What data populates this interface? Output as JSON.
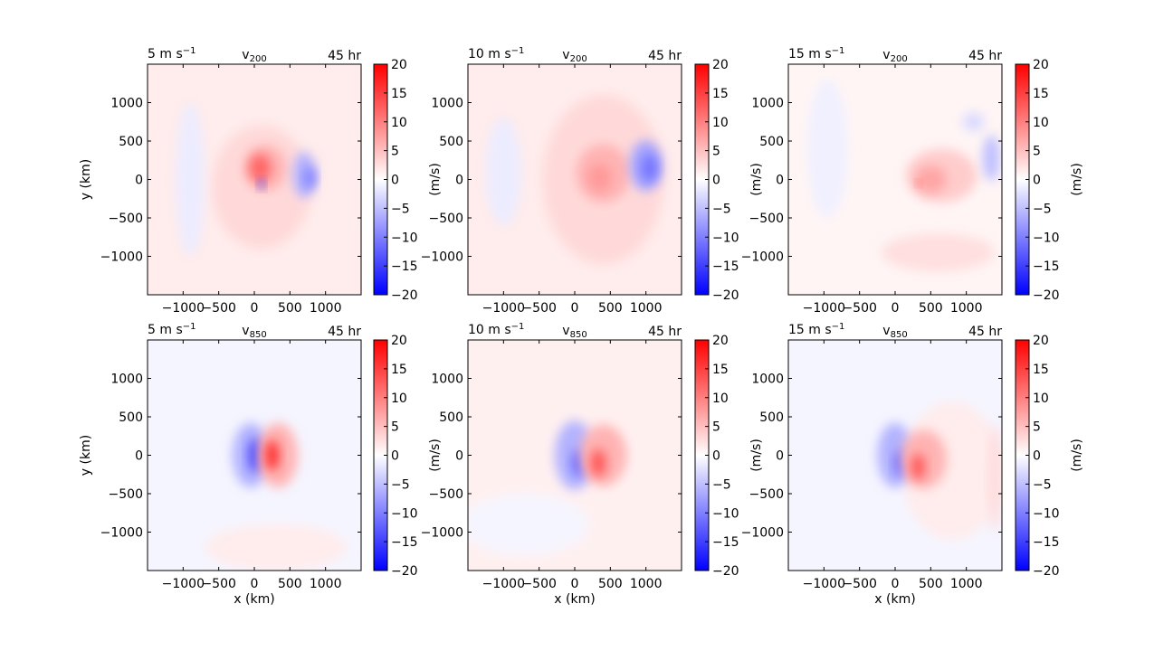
{
  "figure": {
    "colorbar_label": "(m/s)",
    "colorbar": {
      "vmin": -20,
      "vmax": 20,
      "ticks": [
        -20,
        -15,
        -10,
        -5,
        0,
        5,
        10,
        15,
        20
      ],
      "tick_labels": [
        "−20",
        "−15",
        "−10",
        "−5",
        "0",
        "5",
        "10",
        "15",
        "20"
      ],
      "colors": {
        "low": "#0000ff",
        "mid": "#ffffff",
        "high": "#ff0000"
      }
    }
  },
  "chart_data": [
    {
      "type": "heatmap",
      "shear_label": "5 m s",
      "shear_sup": "−1",
      "var_base": "v",
      "var_sub": "200",
      "time_label": "45 hr",
      "xlabel": "",
      "ylabel": "y (km)",
      "xlim": [
        -1500,
        1500
      ],
      "ylim": [
        -1500,
        1500
      ],
      "xticks": [
        -1000,
        -500,
        0,
        500,
        1000
      ],
      "xtick_labels": [
        "−1000",
        "−500",
        "0",
        "500",
        "1000"
      ],
      "yticks": [
        -1000,
        -500,
        0,
        500,
        1000
      ],
      "ytick_labels": [
        "−1000",
        "−500",
        "0",
        "500",
        "1000"
      ],
      "background_value": 1.5,
      "features": [
        {
          "x": 100,
          "y": -100,
          "rx": 700,
          "ry": 800,
          "value": 3
        },
        {
          "x": 150,
          "y": 150,
          "rx": 300,
          "ry": 300,
          "value": 6
        },
        {
          "x": 80,
          "y": 150,
          "rx": 150,
          "ry": 180,
          "value": 12
        },
        {
          "x": 700,
          "y": 60,
          "rx": 160,
          "ry": 300,
          "value": -6
        },
        {
          "x": 780,
          "y": 20,
          "rx": 80,
          "ry": 150,
          "value": -10
        },
        {
          "x": 100,
          "y": -60,
          "rx": 45,
          "ry": 60,
          "value": -16
        },
        {
          "x": -900,
          "y": 0,
          "rx": 200,
          "ry": 1000,
          "value": -1.5
        }
      ]
    },
    {
      "type": "heatmap",
      "shear_label": "10 m s",
      "shear_sup": "−1",
      "var_base": "v",
      "var_sub": "200",
      "time_label": "45 hr",
      "xlabel": "",
      "ylabel": "",
      "xlim": [
        -1500,
        1500
      ],
      "ylim": [
        -1500,
        1500
      ],
      "xticks": [
        -1000,
        -500,
        0,
        500,
        1000
      ],
      "xtick_labels": [
        "−1000",
        "−500",
        "0",
        "500",
        "1000"
      ],
      "yticks": [
        -1000,
        -500,
        0,
        500,
        1000
      ],
      "ytick_labels": [
        "−1000",
        "−500",
        "0",
        "500",
        "1000"
      ],
      "background_value": 1.5,
      "features": [
        {
          "x": 400,
          "y": 0,
          "rx": 850,
          "ry": 1100,
          "value": 3
        },
        {
          "x": 400,
          "y": 80,
          "rx": 380,
          "ry": 380,
          "value": 6
        },
        {
          "x": 350,
          "y": 20,
          "rx": 160,
          "ry": 180,
          "value": 8
        },
        {
          "x": 1000,
          "y": 180,
          "rx": 230,
          "ry": 330,
          "value": -7
        },
        {
          "x": 1050,
          "y": 150,
          "rx": 110,
          "ry": 180,
          "value": -11
        },
        {
          "x": -1000,
          "y": 100,
          "rx": 250,
          "ry": 700,
          "value": -1.5
        }
      ]
    },
    {
      "type": "heatmap",
      "shear_label": "15 m s",
      "shear_sup": "−1",
      "var_base": "v",
      "var_sub": "200",
      "time_label": "45 hr",
      "xlabel": "",
      "ylabel": "",
      "xlim": [
        -1500,
        1500
      ],
      "ylim": [
        -1500,
        1500
      ],
      "xticks": [
        -1000,
        -500,
        0,
        500,
        1000
      ],
      "xtick_labels": [
        "−1000",
        "−500",
        "0",
        "500",
        "1000"
      ],
      "yticks": [
        -1000,
        -500,
        0,
        500,
        1000
      ],
      "ytick_labels": [
        "−1000",
        "−500",
        "0",
        "500",
        "1000"
      ],
      "background_value": 0.8,
      "features": [
        {
          "x": 600,
          "y": -950,
          "rx": 800,
          "ry": 250,
          "value": 2.5
        },
        {
          "x": 650,
          "y": 50,
          "rx": 500,
          "ry": 350,
          "value": 4
        },
        {
          "x": 500,
          "y": 0,
          "rx": 220,
          "ry": 180,
          "value": 7
        },
        {
          "x": 330,
          "y": -50,
          "rx": 35,
          "ry": 35,
          "value": 14
        },
        {
          "x": 1350,
          "y": 280,
          "rx": 120,
          "ry": 300,
          "value": -5
        },
        {
          "x": 1100,
          "y": 750,
          "rx": 150,
          "ry": 120,
          "value": -3
        },
        {
          "x": -950,
          "y": 400,
          "rx": 280,
          "ry": 900,
          "value": -1.2
        }
      ]
    },
    {
      "type": "heatmap",
      "shear_label": "5 m s",
      "shear_sup": "−1",
      "var_base": "v",
      "var_sub": "850",
      "time_label": "45 hr",
      "xlabel": "x (km)",
      "ylabel": "y (km)",
      "xlim": [
        -1500,
        1500
      ],
      "ylim": [
        -1500,
        1500
      ],
      "xticks": [
        -1000,
        -500,
        0,
        500,
        1000
      ],
      "xtick_labels": [
        "−1000",
        "−500",
        "0",
        "500",
        "1000"
      ],
      "yticks": [
        -1000,
        -500,
        0,
        500,
        1000
      ],
      "ytick_labels": [
        "−1000",
        "−500",
        "0",
        "500",
        "1000"
      ],
      "background_value": -0.8,
      "features": [
        {
          "x": 300,
          "y": -1200,
          "rx": 1000,
          "ry": 300,
          "value": 1.5
        },
        {
          "x": -50,
          "y": 0,
          "rx": 260,
          "ry": 420,
          "value": -6
        },
        {
          "x": 20,
          "y": 0,
          "rx": 100,
          "ry": 220,
          "value": -15
        },
        {
          "x": 330,
          "y": 0,
          "rx": 280,
          "ry": 420,
          "value": 6
        },
        {
          "x": 250,
          "y": 0,
          "rx": 100,
          "ry": 200,
          "value": 16
        }
      ]
    },
    {
      "type": "heatmap",
      "shear_label": "10 m s",
      "shear_sup": "−1",
      "var_base": "v",
      "var_sub": "850",
      "time_label": "45 hr",
      "xlabel": "x (km)",
      "ylabel": "",
      "xlim": [
        -1500,
        1500
      ],
      "ylim": [
        -1500,
        1500
      ],
      "xticks": [
        -1000,
        -500,
        0,
        500,
        1000
      ],
      "xtick_labels": [
        "−1000",
        "−500",
        "0",
        "500",
        "1000"
      ],
      "yticks": [
        -1000,
        -500,
        0,
        500,
        1000
      ],
      "ytick_labels": [
        "−1000",
        "−500",
        "0",
        "500",
        "1000"
      ],
      "background_value": 1.2,
      "features": [
        {
          "x": -700,
          "y": -900,
          "rx": 900,
          "ry": 400,
          "value": -0.8
        },
        {
          "x": 0,
          "y": 0,
          "rx": 280,
          "ry": 450,
          "value": -6
        },
        {
          "x": 60,
          "y": -100,
          "rx": 100,
          "ry": 180,
          "value": -12
        },
        {
          "x": 400,
          "y": 0,
          "rx": 330,
          "ry": 400,
          "value": 6
        },
        {
          "x": 330,
          "y": -100,
          "rx": 110,
          "ry": 180,
          "value": 13
        }
      ]
    },
    {
      "type": "heatmap",
      "shear_label": "15 m s",
      "shear_sup": "−1",
      "var_base": "v",
      "var_sub": "850",
      "time_label": "45 hr",
      "xlabel": "x (km)",
      "ylabel": "",
      "xlim": [
        -1500,
        1500
      ],
      "ylim": [
        -1500,
        1500
      ],
      "xticks": [
        -1000,
        -500,
        0,
        500,
        1000
      ],
      "xtick_labels": [
        "−1000",
        "−500",
        "0",
        "500",
        "1000"
      ],
      "yticks": [
        -1000,
        -500,
        0,
        500,
        1000
      ],
      "ytick_labels": [
        "−1000",
        "−500",
        "0",
        "500",
        "1000"
      ],
      "background_value": -0.8,
      "features": [
        {
          "x": 800,
          "y": -200,
          "rx": 700,
          "ry": 900,
          "value": 1.5
        },
        {
          "x": 1400,
          "y": -300,
          "rx": 80,
          "ry": 700,
          "value": 3
        },
        {
          "x": 0,
          "y": 0,
          "rx": 250,
          "ry": 420,
          "value": -6
        },
        {
          "x": 80,
          "y": -100,
          "rx": 90,
          "ry": 170,
          "value": -12
        },
        {
          "x": 400,
          "y": -50,
          "rx": 320,
          "ry": 380,
          "value": 6
        },
        {
          "x": 320,
          "y": -150,
          "rx": 100,
          "ry": 170,
          "value": 13
        }
      ]
    }
  ]
}
